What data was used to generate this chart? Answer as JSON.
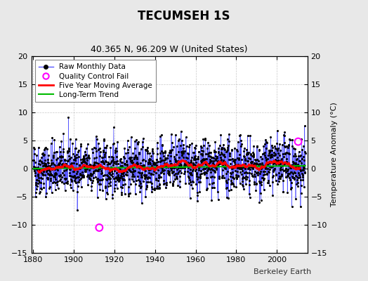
{
  "title": "TECUMSEH 1S",
  "subtitle": "40.365 N, 96.209 W (United States)",
  "ylabel": "Temperature Anomaly (°C)",
  "xlabel_credit": "Berkeley Earth",
  "year_start": 1880,
  "year_end": 2014,
  "ylim": [
    -15,
    20
  ],
  "yticks": [
    -15,
    -10,
    -5,
    0,
    5,
    10,
    15,
    20
  ],
  "xticks": [
    1880,
    1900,
    1920,
    1940,
    1960,
    1980,
    2000
  ],
  "background_color": "#e8e8e8",
  "plot_bg_color": "#ffffff",
  "raw_line_color": "#5555ff",
  "raw_dot_color": "#000000",
  "moving_avg_color": "#ff0000",
  "trend_color": "#00bb00",
  "qc_fail_color": "#ff00ff",
  "seed": 42,
  "n_months": 1620,
  "qc_fail_points": [
    [
      1912.5,
      -10.5
    ],
    [
      2010.5,
      4.8
    ]
  ],
  "noise_std": 3.0,
  "ma_window": 60
}
